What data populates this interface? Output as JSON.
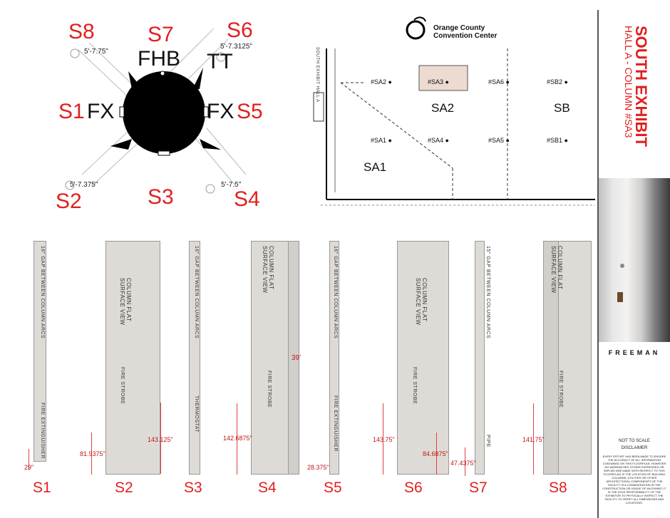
{
  "top_diagram": {
    "sides": {
      "s8": "S8",
      "s7": "S7",
      "s6": "S6",
      "s1": "S1",
      "s5": "S5",
      "s2": "S2",
      "s3": "S3",
      "s4": "S4"
    },
    "codes": {
      "fhb": "FHB",
      "tt": "TT",
      "fx_left": "FX",
      "fx_right": "FX"
    },
    "dims": {
      "top_left": "5'-7.75\"",
      "top_right": "5'-7.3125\"",
      "bottom_left": "5'-7.375\"",
      "bottom_right": "5'-7.5\""
    }
  },
  "plan": {
    "logo_line1": "Orange County",
    "logo_line2": "Convention Center",
    "hall_label": "SOUTH EXHIBIT HALL A",
    "columns": [
      "#SA2",
      "#SA3",
      "#SA6",
      "#SB2",
      "#SA1",
      "#SA4",
      "#SA5",
      "#SB1"
    ],
    "zones": [
      "SA2",
      "SB",
      "SA1"
    ]
  },
  "elevations": {
    "gap_text": "16\" GAP BETWEEN COLUMN ARCS",
    "gap_text_s7": "15\" GAP BETWEEN COLUMN ARCS",
    "flat_view": "COLUMN FLAT SURFACE VIEW",
    "fire_strobe": "FIRE STROBE",
    "fire_ext": "FIRE EXTINGUISHER",
    "thermostat": "THERMOSTAT",
    "pipe": "PIPE",
    "dims": {
      "s1": "29\"",
      "s2a": "81.9375\"",
      "s2b": "143.125\"",
      "s4a": "142.6875\"",
      "s4h": "39'",
      "s5": "28.375\"",
      "s6a": "143.75\"",
      "s6b": "84.6875\"",
      "s7": "47.4375\"",
      "s8": "141.75\""
    },
    "labels": [
      "S1",
      "S2",
      "S3",
      "S4",
      "S5",
      "S6",
      "S7",
      "S8"
    ]
  },
  "sidebar": {
    "title": "SOUTH EXHIBIT",
    "subtitle": "HALL A - COLUMN #SA3",
    "brand": "FREEMAN",
    "not_to_scale": "NOT TO SCALE",
    "disclaimer_title": "DISCLAIMER",
    "disclaimer_text": "EVERY EFFORT HAS BEEN MADE TO ENSURE THE ACCURACY OF ALL INFORMATION CONTAINED ON THIS FLOORPLAN. HOWEVER NO WARRANTIES, EITHER EXPRESSED OR IMPLIED ARE MADE WITH RESPECT TO THIS FLOORPLAN. IF THE LOCATION OF BUILDING COLUMNS, UTILITIES OR OTHER ARCHITECTURAL COMPONENTS OF THE FACILITY IS A CONSIDERATION IN THE CONSTRUCTION OR USAGE OF AN EXHIBIT, IT IS THE SOLE RESPONSIBILITY OF THE EXHIBITOR TO PHYSICALLY INSPECT THE FACILITY TO VERIFY ALL DIMENSIONS AND LOCATIONS."
  }
}
